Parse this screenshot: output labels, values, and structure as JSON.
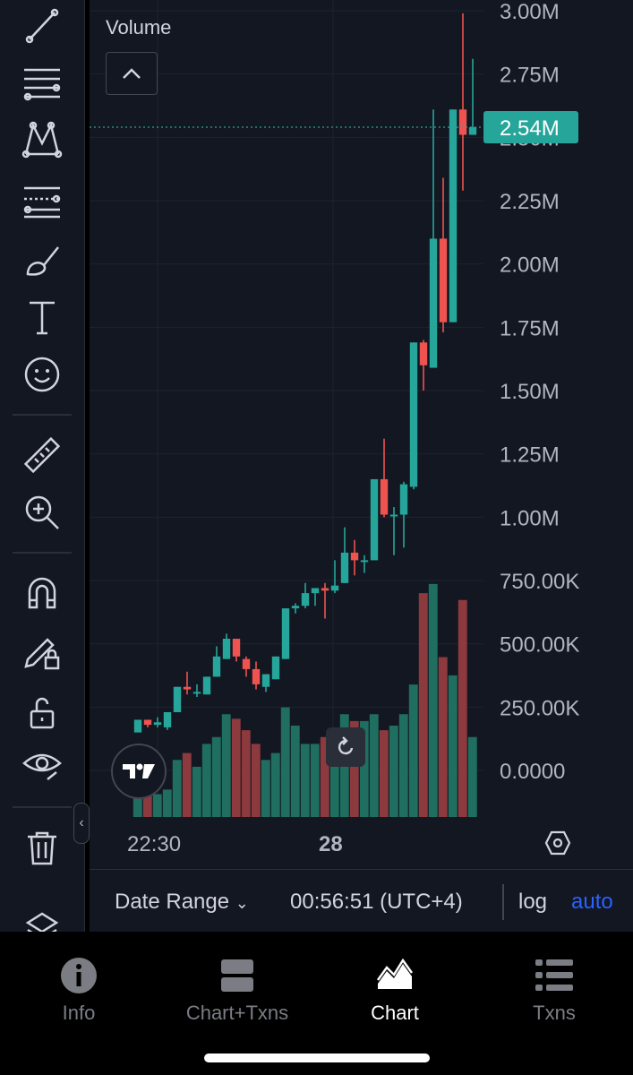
{
  "toolbar": {
    "tools": [
      "trend-line-icon",
      "horizontal-lines-icon",
      "pattern-icon",
      "fib-retracement-icon",
      "brush-icon",
      "text-icon",
      "emoji-icon",
      "ruler-icon",
      "zoom-in-icon",
      "magnet-icon",
      "lock-drawing-icon",
      "unlock-icon",
      "eye-icon",
      "trash-icon",
      "layers-icon"
    ]
  },
  "chart": {
    "volume_label": "Volume",
    "price_label": "2.54M",
    "up_color": "#26a69a",
    "down_color": "#ef5350",
    "date_range_label": "Date Range",
    "clock": "00:56:51 (UTC+4)",
    "log_label": "log",
    "auto_label": "auto"
  },
  "chart_data": {
    "type": "candlestick",
    "title": "",
    "ylabel": "",
    "y_tick_labels": [
      "3.00M",
      "2.75M",
      "2.50M",
      "2.25M",
      "2.00M",
      "1.75M",
      "1.50M",
      "1.25M",
      "1.00M",
      "750.00K",
      "500.00K",
      "250.00K",
      "0.0000"
    ],
    "y_tick_values": [
      3000000,
      2750000,
      2500000,
      2250000,
      2000000,
      1750000,
      1500000,
      1250000,
      1000000,
      750000,
      500000,
      250000,
      0
    ],
    "ylim": [
      -180000,
      3050000
    ],
    "x_tick_labels": [
      "22:30",
      "28"
    ],
    "last_price": 2540000,
    "candles": [
      {
        "o": 150000,
        "h": 200000,
        "l": 150000,
        "c": 200000
      },
      {
        "o": 200000,
        "h": 200000,
        "l": 170000,
        "c": 180000
      },
      {
        "o": 180000,
        "h": 210000,
        "l": 170000,
        "c": 190000
      },
      {
        "o": 170000,
        "h": 230000,
        "l": 160000,
        "c": 230000
      },
      {
        "o": 230000,
        "h": 330000,
        "l": 230000,
        "c": 330000
      },
      {
        "o": 330000,
        "h": 390000,
        "l": 300000,
        "c": 320000
      },
      {
        "o": 310000,
        "h": 340000,
        "l": 290000,
        "c": 310000
      },
      {
        "o": 300000,
        "h": 370000,
        "l": 300000,
        "c": 370000
      },
      {
        "o": 370000,
        "h": 490000,
        "l": 370000,
        "c": 450000
      },
      {
        "o": 440000,
        "h": 540000,
        "l": 440000,
        "c": 520000
      },
      {
        "o": 520000,
        "h": 520000,
        "l": 430000,
        "c": 450000
      },
      {
        "o": 440000,
        "h": 450000,
        "l": 370000,
        "c": 400000
      },
      {
        "o": 400000,
        "h": 430000,
        "l": 320000,
        "c": 340000
      },
      {
        "o": 330000,
        "h": 380000,
        "l": 310000,
        "c": 380000
      },
      {
        "o": 360000,
        "h": 450000,
        "l": 360000,
        "c": 450000
      },
      {
        "o": 440000,
        "h": 640000,
        "l": 440000,
        "c": 640000
      },
      {
        "o": 640000,
        "h": 660000,
        "l": 620000,
        "c": 650000
      },
      {
        "o": 650000,
        "h": 740000,
        "l": 640000,
        "c": 700000
      },
      {
        "o": 700000,
        "h": 720000,
        "l": 650000,
        "c": 720000
      },
      {
        "o": 720000,
        "h": 740000,
        "l": 600000,
        "c": 710000
      },
      {
        "o": 710000,
        "h": 830000,
        "l": 700000,
        "c": 730000
      },
      {
        "o": 740000,
        "h": 960000,
        "l": 740000,
        "c": 860000
      },
      {
        "o": 860000,
        "h": 910000,
        "l": 770000,
        "c": 830000
      },
      {
        "o": 830000,
        "h": 850000,
        "l": 780000,
        "c": 830000
      },
      {
        "o": 830000,
        "h": 1150000,
        "l": 830000,
        "c": 1150000
      },
      {
        "o": 1150000,
        "h": 1310000,
        "l": 1000000,
        "c": 1010000
      },
      {
        "o": 1010000,
        "h": 1040000,
        "l": 850000,
        "c": 1010000
      },
      {
        "o": 1010000,
        "h": 1140000,
        "l": 880000,
        "c": 1130000
      },
      {
        "o": 1120000,
        "h": 1690000,
        "l": 1110000,
        "c": 1690000
      },
      {
        "o": 1690000,
        "h": 1700000,
        "l": 1500000,
        "c": 1600000
      },
      {
        "o": 1590000,
        "h": 2610000,
        "l": 1590000,
        "c": 2100000
      },
      {
        "o": 2100000,
        "h": 2340000,
        "l": 1730000,
        "c": 1770000
      },
      {
        "o": 1770000,
        "h": 2610000,
        "l": 1770000,
        "c": 2610000
      },
      {
        "o": 2610000,
        "h": 2990000,
        "l": 2290000,
        "c": 2510000
      },
      {
        "o": 2510000,
        "h": 2810000,
        "l": 2510000,
        "c": 2540000
      }
    ],
    "volume": [
      15,
      10,
      10,
      12,
      25,
      28,
      22,
      32,
      35,
      45,
      43,
      38,
      32,
      25,
      28,
      48,
      40,
      32,
      32,
      35,
      38,
      45,
      42,
      42,
      45,
      38,
      40,
      45,
      58,
      98,
      102,
      70,
      62,
      95,
      35
    ]
  },
  "nav": {
    "items": [
      {
        "label": "Info",
        "icon": "info-icon"
      },
      {
        "label": "Chart+Txns",
        "icon": "split-view-icon"
      },
      {
        "label": "Chart",
        "icon": "chart-icon"
      },
      {
        "label": "Txns",
        "icon": "transactions-list-icon"
      }
    ],
    "active": "Chart"
  }
}
